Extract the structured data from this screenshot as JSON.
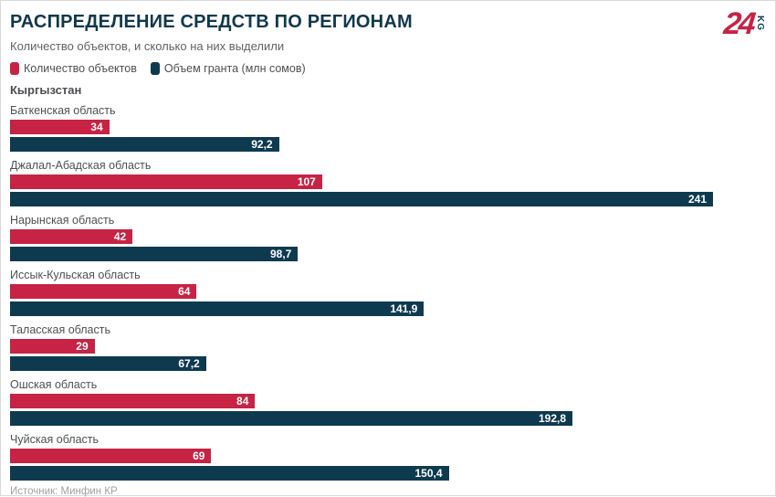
{
  "header": {
    "title": "РАСПРЕДЕЛЕНИЕ СРЕДСТВ ПО РЕГИОНАМ",
    "subtitle": "Количество объектов, и сколько на них выделили",
    "logo_number": "24",
    "logo_suffix": "KG"
  },
  "legend": [
    {
      "label": "Количество объектов",
      "color": "#c62345"
    },
    {
      "label": "Объем гранта (млн сомов)",
      "color": "#0e3a4f"
    }
  ],
  "country_label": "Кыргызстан",
  "source": "Источник: Минфин КР",
  "colors": {
    "accent_red": "#c62345",
    "accent_navy": "#0e3a4f",
    "title_color": "#10384e"
  },
  "chart_data": {
    "type": "bar",
    "orientation": "horizontal",
    "title": "РАСПРЕДЕЛЕНИЕ СРЕДСТВ ПО РЕГИОНАМ",
    "subtitle": "Количество объектов, и сколько на них выделили",
    "group_label": "Кыргызстан",
    "categories": [
      "Баткенская область",
      "Джалал-Абадская область",
      "Нарынская область",
      "Иссык-Кульская область",
      "Таласская область",
      "Ошская область",
      "Чуйская область"
    ],
    "series": [
      {
        "name": "Количество объектов",
        "color": "#c62345",
        "values": [
          34,
          107,
          42,
          64,
          29,
          84,
          69
        ],
        "labels": [
          "34",
          "107",
          "42",
          "64",
          "29",
          "84",
          "69"
        ]
      },
      {
        "name": "Объем гранта (млн сомов)",
        "color": "#0e3a4f",
        "values": [
          92.2,
          241,
          98.7,
          141.9,
          67.2,
          192.8,
          150.4
        ],
        "labels": [
          "92,2",
          "241",
          "98,7",
          "141,9",
          "67,2",
          "192,8",
          "150,4"
        ]
      }
    ],
    "xlim": [
      0,
      241
    ],
    "value_labels": "inside-end",
    "grid": false,
    "legend_position": "top-left",
    "source": "Источник: Минфин КР"
  }
}
